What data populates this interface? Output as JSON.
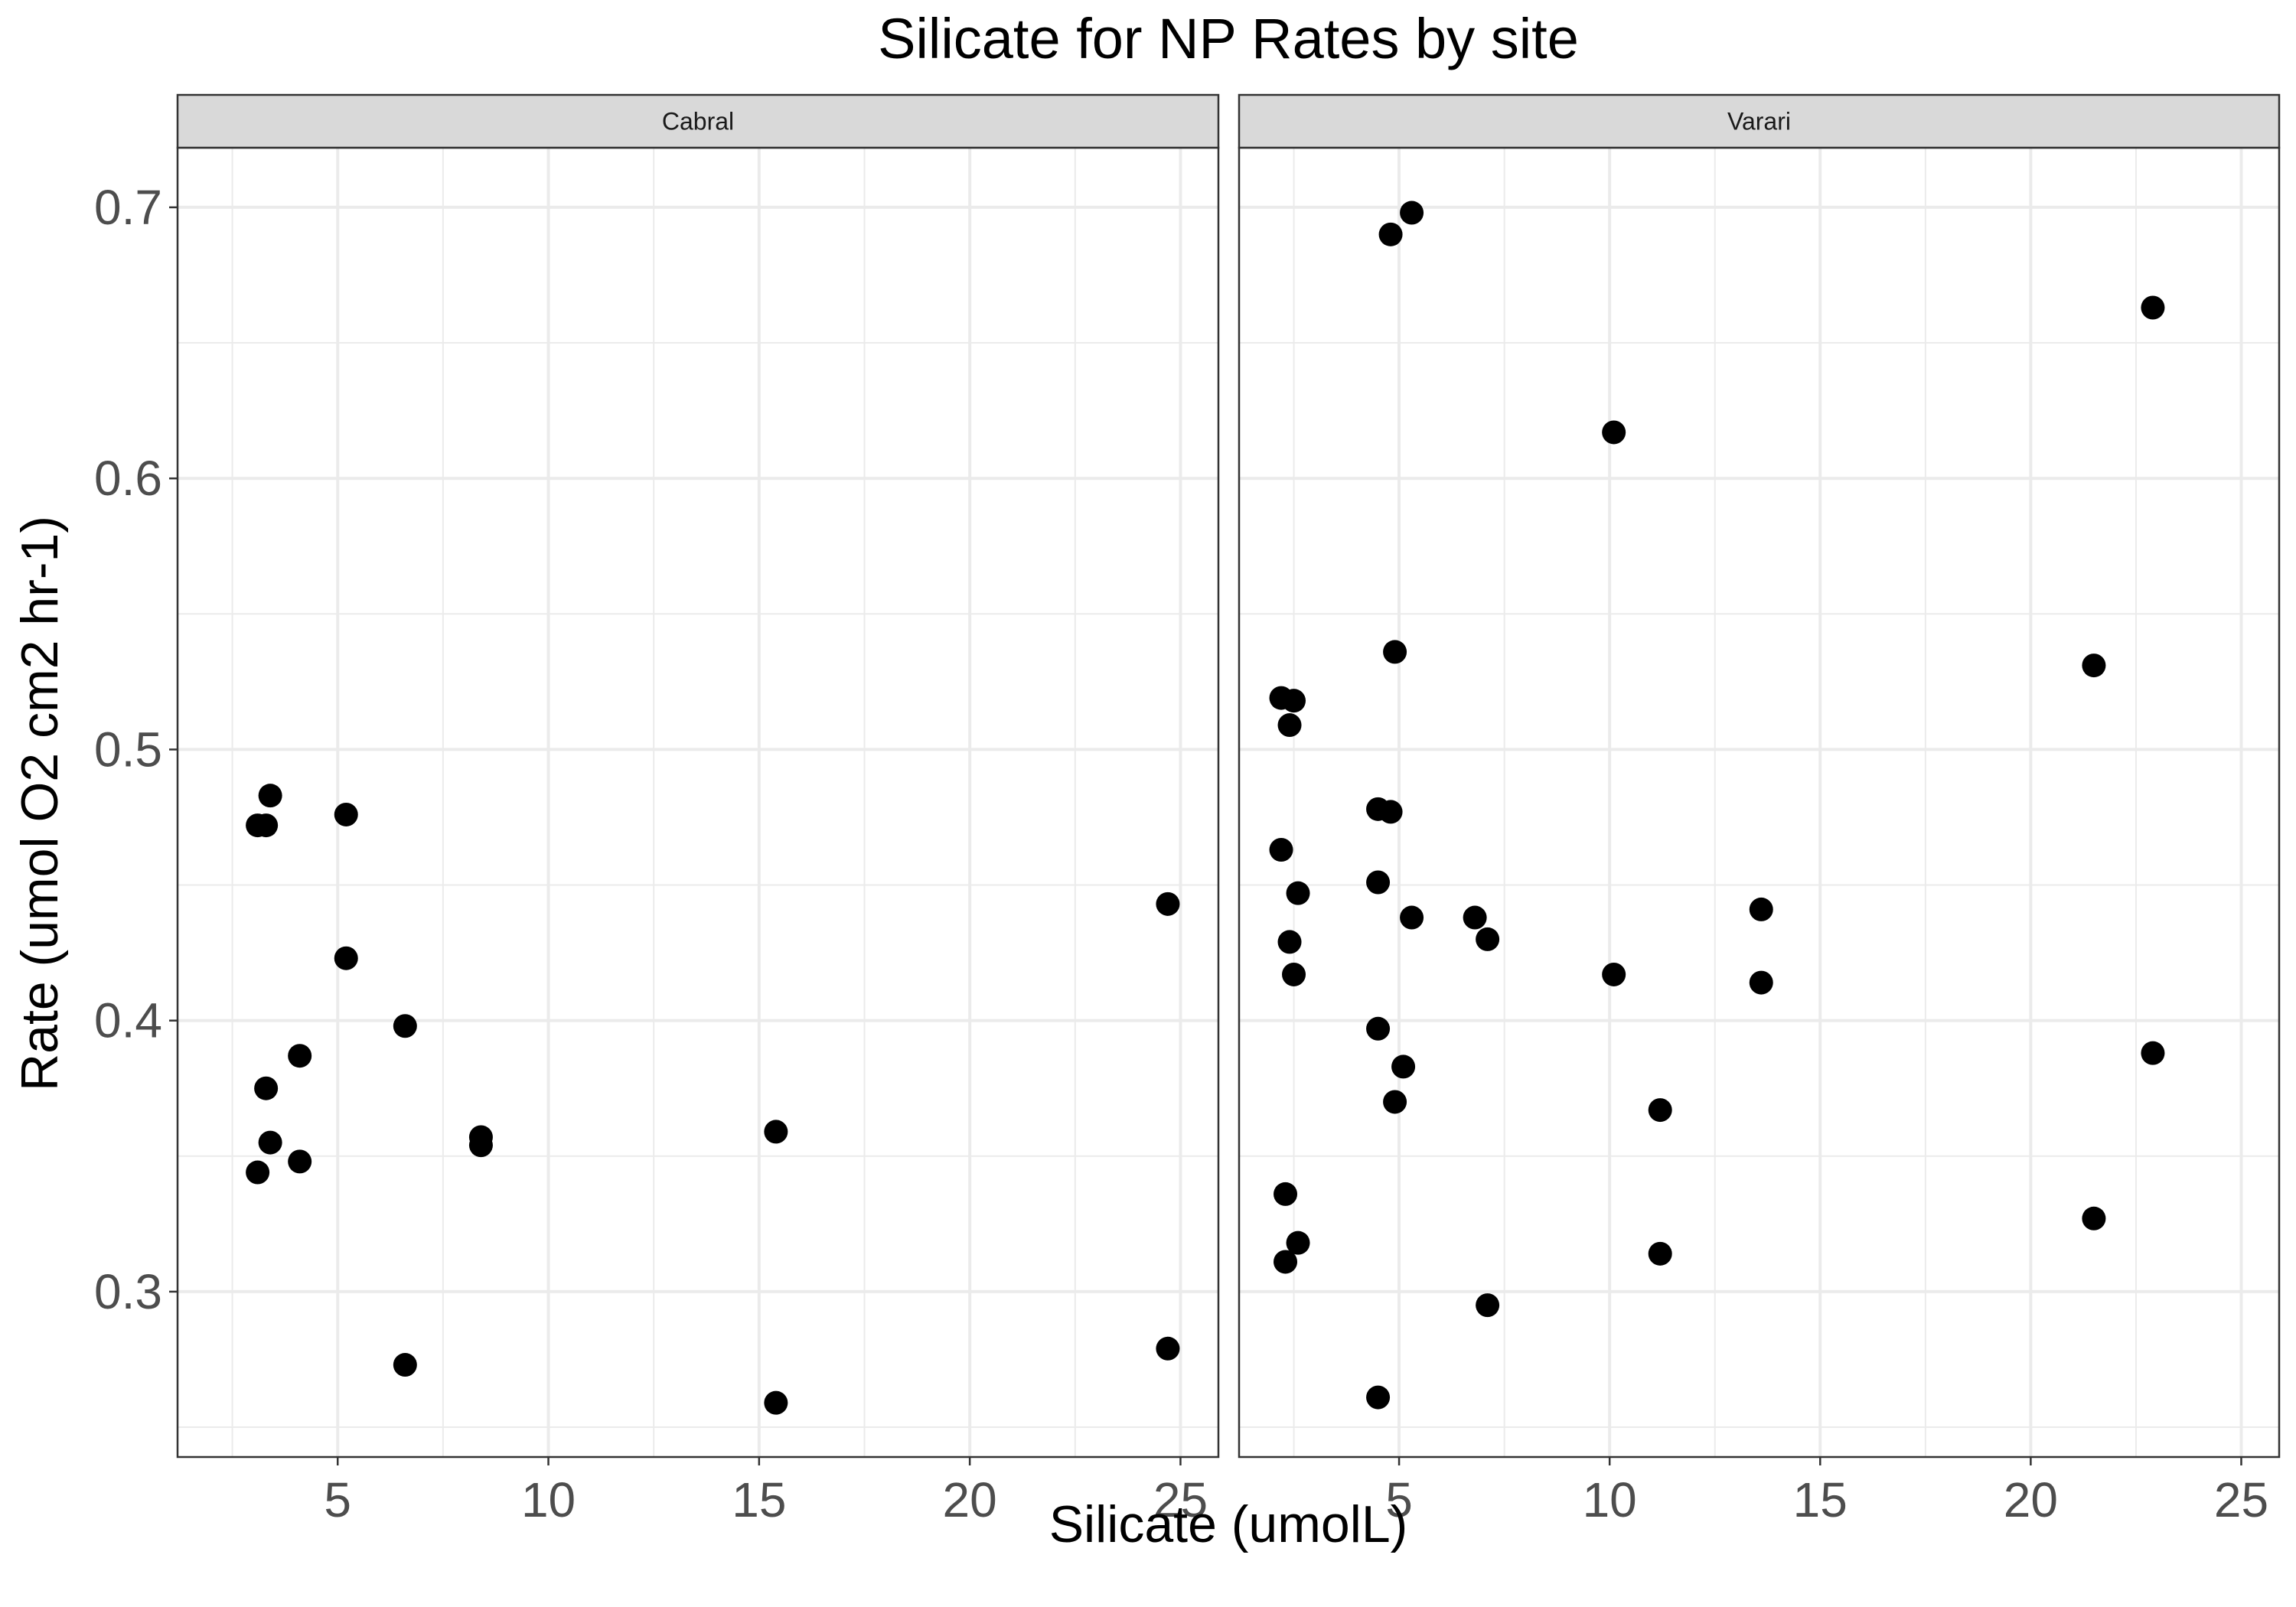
{
  "chart_data": {
    "type": "scatter",
    "title": "Silicate for NP Rates by site",
    "xlabel": "Silicate (umolL)",
    "ylabel": "Rate (umol O2 cm2 hr-1)",
    "xlim": [
      1.2,
      25.9
    ],
    "ylim": [
      0.239,
      0.722
    ],
    "x_ticks": [
      5,
      10,
      15,
      20,
      25
    ],
    "x_tick_labels": [
      "5",
      "10",
      "15",
      "20",
      "25"
    ],
    "y_ticks": [
      0.3,
      0.4,
      0.5,
      0.6,
      0.7
    ],
    "y_tick_labels": [
      "0.3",
      "0.4",
      "0.5",
      "0.6",
      "0.7"
    ],
    "grid": true,
    "legend": "none",
    "colors": {
      "point": "#000000",
      "strip": "#d9d9d9",
      "grid": "#ebebeb",
      "panel_border": "#333333"
    },
    "facets": [
      {
        "label": "Cabral",
        "points": [
          {
            "x": 3.1,
            "y": 0.472
          },
          {
            "x": 3.3,
            "y": 0.472
          },
          {
            "x": 3.4,
            "y": 0.483
          },
          {
            "x": 5.2,
            "y": 0.476
          },
          {
            "x": 5.2,
            "y": 0.423
          },
          {
            "x": 6.6,
            "y": 0.398
          },
          {
            "x": 4.1,
            "y": 0.387
          },
          {
            "x": 3.3,
            "y": 0.375
          },
          {
            "x": 3.4,
            "y": 0.355
          },
          {
            "x": 4.1,
            "y": 0.348
          },
          {
            "x": 3.1,
            "y": 0.344
          },
          {
            "x": 8.4,
            "y": 0.357
          },
          {
            "x": 8.4,
            "y": 0.354
          },
          {
            "x": 15.4,
            "y": 0.359
          },
          {
            "x": 24.7,
            "y": 0.443
          },
          {
            "x": 24.7,
            "y": 0.279
          },
          {
            "x": 6.6,
            "y": 0.273
          },
          {
            "x": 15.4,
            "y": 0.259
          }
        ]
      },
      {
        "label": "Varari",
        "points": [
          {
            "x": 5.3,
            "y": 0.698
          },
          {
            "x": 4.8,
            "y": 0.69
          },
          {
            "x": 22.9,
            "y": 0.663
          },
          {
            "x": 10.1,
            "y": 0.617
          },
          {
            "x": 4.9,
            "y": 0.536
          },
          {
            "x": 21.5,
            "y": 0.531
          },
          {
            "x": 2.2,
            "y": 0.519
          },
          {
            "x": 2.5,
            "y": 0.518
          },
          {
            "x": 2.4,
            "y": 0.509
          },
          {
            "x": 4.5,
            "y": 0.478
          },
          {
            "x": 4.8,
            "y": 0.477
          },
          {
            "x": 2.2,
            "y": 0.463
          },
          {
            "x": 4.5,
            "y": 0.451
          },
          {
            "x": 2.6,
            "y": 0.447
          },
          {
            "x": 13.6,
            "y": 0.441
          },
          {
            "x": 5.3,
            "y": 0.438
          },
          {
            "x": 6.8,
            "y": 0.438
          },
          {
            "x": 7.1,
            "y": 0.43
          },
          {
            "x": 2.4,
            "y": 0.429
          },
          {
            "x": 10.1,
            "y": 0.417
          },
          {
            "x": 2.5,
            "y": 0.417
          },
          {
            "x": 13.6,
            "y": 0.414
          },
          {
            "x": 4.5,
            "y": 0.397
          },
          {
            "x": 22.9,
            "y": 0.388
          },
          {
            "x": 5.1,
            "y": 0.383
          },
          {
            "x": 4.9,
            "y": 0.37
          },
          {
            "x": 11.2,
            "y": 0.367
          },
          {
            "x": 2.3,
            "y": 0.336
          },
          {
            "x": 21.5,
            "y": 0.327
          },
          {
            "x": 2.6,
            "y": 0.318
          },
          {
            "x": 11.2,
            "y": 0.314
          },
          {
            "x": 2.3,
            "y": 0.311
          },
          {
            "x": 7.1,
            "y": 0.295
          },
          {
            "x": 4.5,
            "y": 0.261
          }
        ]
      }
    ]
  }
}
